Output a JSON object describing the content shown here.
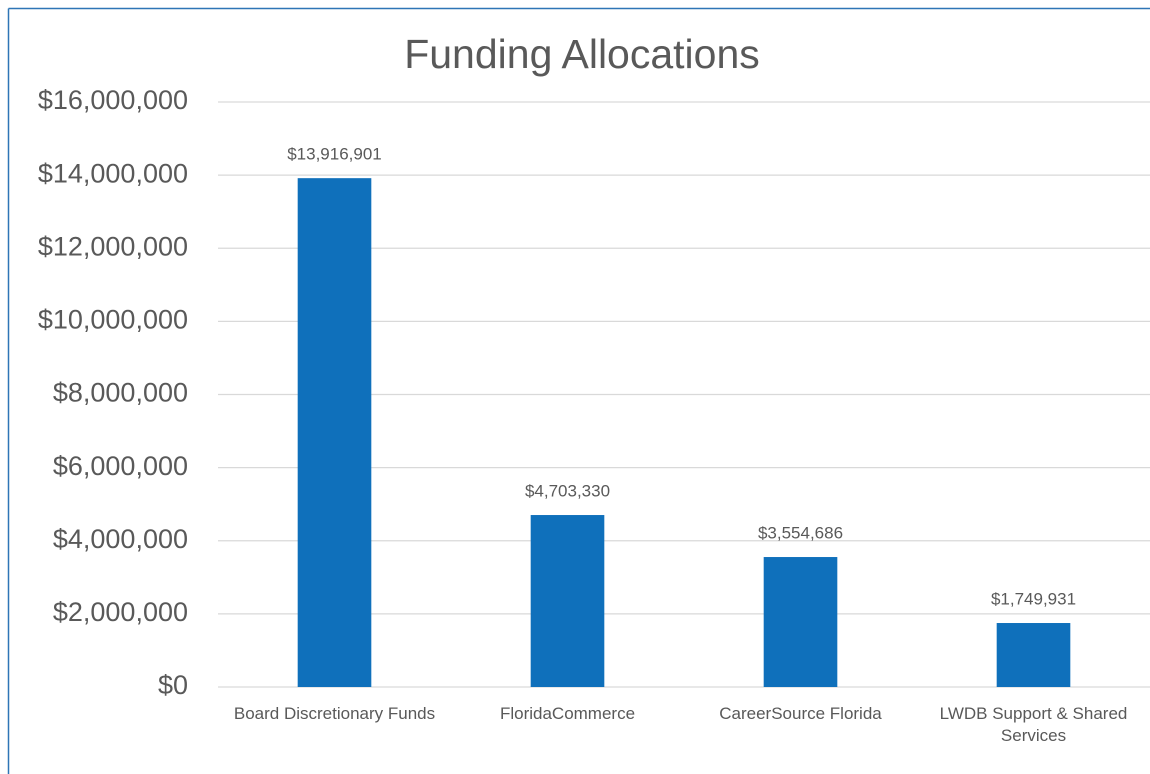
{
  "chart_data": {
    "type": "bar",
    "title": "Funding Allocations",
    "categories": [
      "Board Discretionary Funds",
      "FloridaCommerce",
      "CareerSource Florida",
      "LWDB Support & Shared Services"
    ],
    "values": [
      13916901,
      4703330,
      3554686,
      1749931
    ],
    "value_labels": [
      "$13,916,901",
      "$4,703,330",
      "$3,554,686",
      "$1,749,931"
    ],
    "color": "#0f70bb",
    "ylim": [
      0,
      16000000
    ],
    "yticks": [
      {
        "value": 0,
        "label": "$0"
      },
      {
        "value": 2000000,
        "label": "$2,000,000"
      },
      {
        "value": 4000000,
        "label": "$4,000,000"
      },
      {
        "value": 6000000,
        "label": "$6,000,000"
      },
      {
        "value": 8000000,
        "label": "$8,000,000"
      },
      {
        "value": 10000000,
        "label": "$10,000,000"
      },
      {
        "value": 12000000,
        "label": "$12,000,000"
      },
      {
        "value": 14000000,
        "label": "$14,000,000"
      },
      {
        "value": 16000000,
        "label": "$16,000,000"
      }
    ],
    "grid": true
  }
}
